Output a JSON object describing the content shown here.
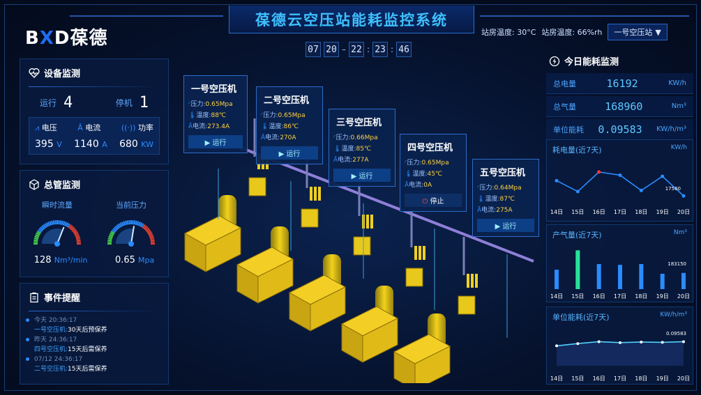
{
  "header": {
    "logo_prefix": "B",
    "logo_x": "X",
    "logo_suffix": "D葆德",
    "title": "葆德云空压站能耗监控系统",
    "temp_label": "站房温度: 30°C",
    "humidity_label": "站房温度: 66%rh",
    "station": "一号空压站"
  },
  "clock": {
    "d": [
      "07",
      "20",
      "22",
      "23",
      "46"
    ]
  },
  "device": {
    "title": "设备监测",
    "run_label": "运行",
    "run_count": "4",
    "stop_label": "停机",
    "stop_count": "1",
    "voltage_label": "电压",
    "current_label": "电流",
    "power_label": "功率",
    "voltage": "395",
    "voltage_unit": "V",
    "current": "1140",
    "current_unit": "A",
    "power": "680",
    "power_unit": "KW"
  },
  "pipe": {
    "title": "总管监测",
    "flow_label": "瞬时流量",
    "pressure_label": "当前压力",
    "flow": "128",
    "flow_unit": "Nm³/min",
    "pressure": "0.65",
    "pressure_unit": "Mpa",
    "flow_level": 0.62,
    "pressure_level": 0.55
  },
  "events": {
    "title": "事件提醒",
    "items": [
      {
        "time": "今天 20:36:17",
        "machine": "一号空压机:",
        "msg": "30天后预保养"
      },
      {
        "time": "昨天 24:36:17",
        "machine": "四号空压机:",
        "msg": "15天后需保养"
      },
      {
        "time": "07/12 24:36:17",
        "machine": "二号空压机:",
        "msg": "15天后需保养"
      }
    ]
  },
  "machines": [
    {
      "name": "一号空压机",
      "pressure": "0.65Mpa",
      "temp": "88℃",
      "current": "273.4A",
      "status": "运行"
    },
    {
      "name": "二号空压机",
      "pressure": "0.65Mpa",
      "temp": "86℃",
      "current": "270A",
      "status": "运行"
    },
    {
      "name": "三号空压机",
      "pressure": "0.66Mpa",
      "temp": "85℃",
      "current": "277A",
      "status": "运行"
    },
    {
      "name": "四号空压机",
      "pressure": "0.65Mpa",
      "temp": "45℃",
      "current": "0A",
      "status": "停止"
    },
    {
      "name": "五号空压机",
      "pressure": "0.64Mpa",
      "temp": "87℃",
      "current": "275A",
      "status": "运行"
    }
  ],
  "labels": {
    "pressure": "压力:",
    "temp": "温度:",
    "current": "电流:"
  },
  "energy": {
    "title": "今日能耗监测",
    "rows": [
      {
        "k": "总电量",
        "v": "16192",
        "u": "KW/h"
      },
      {
        "k": "总气量",
        "v": "168960",
        "u": "Nm³"
      },
      {
        "k": "单位能耗",
        "v": "0.09583",
        "u": "KW/h/m³"
      }
    ]
  },
  "chart_data": [
    {
      "type": "line",
      "title": "耗电量(近7天)",
      "unit": "KW/h",
      "categories": [
        "14日",
        "15日",
        "16日",
        "17日",
        "18日",
        "19日",
        "20日"
      ],
      "values": [
        17900,
        16900,
        18700,
        18400,
        17000,
        18300,
        16500
      ],
      "annotation": "17560"
    },
    {
      "type": "bar",
      "title": "产气量(近7天)",
      "unit": "Nm³",
      "categories": [
        "14日",
        "15日",
        "16日",
        "17日",
        "18日",
        "19日",
        "20日"
      ],
      "values": [
        120000,
        240000,
        155000,
        150000,
        155000,
        95000,
        100000
      ],
      "annotation": "183150"
    },
    {
      "type": "area",
      "title": "单位能耗(近7天)",
      "unit": "KW/h/m³",
      "categories": [
        "14日",
        "15日",
        "16日",
        "17日",
        "18日",
        "19日",
        "20日"
      ],
      "values": [
        0.0945,
        0.0952,
        0.0958,
        0.0955,
        0.0957,
        0.0956,
        0.0958
      ],
      "annotation": "0.09583"
    }
  ],
  "colors": {
    "accent": "#2a8cff",
    "gauge_red": "#e8412f",
    "gauge_green": "#44d14a"
  }
}
